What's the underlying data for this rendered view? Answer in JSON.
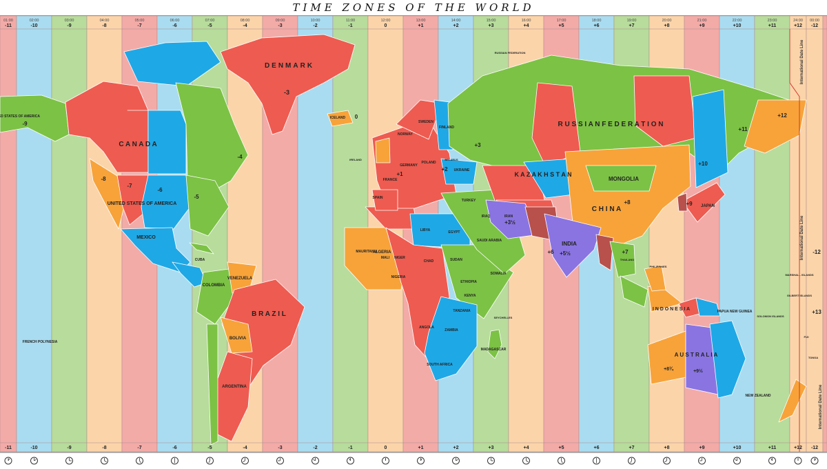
{
  "title": "TIME ZONES OF THE WORLD",
  "colors": {
    "stripe_pink": "#f3aba8",
    "stripe_blue": "#a9dcf0",
    "stripe_green": "#b7dc9c",
    "stripe_peach": "#fbd4aa",
    "land_red": "#ee5b50",
    "land_green": "#7cc245",
    "land_blue": "#1fa8e6",
    "land_orange": "#f7a33a",
    "land_purple": "#8a74e2",
    "land_darkred": "#b8504c",
    "land_pink": "#f0a7a6",
    "ocean": "#a9dcf0"
  },
  "zones": [
    {
      "time": "01:00",
      "offset": "-11",
      "color": "stripe_pink"
    },
    {
      "time": "02:00",
      "offset": "-10",
      "color": "stripe_blue"
    },
    {
      "time": "03:00",
      "offset": "-9",
      "color": "stripe_green"
    },
    {
      "time": "04:00",
      "offset": "-8",
      "color": "stripe_peach"
    },
    {
      "time": "05:00",
      "offset": "-7",
      "color": "stripe_pink"
    },
    {
      "time": "06:00",
      "offset": "-6",
      "color": "stripe_blue"
    },
    {
      "time": "07:00",
      "offset": "-5",
      "color": "stripe_green"
    },
    {
      "time": "08:00",
      "offset": "-4",
      "color": "stripe_peach"
    },
    {
      "time": "09:00",
      "offset": "-3",
      "color": "stripe_pink"
    },
    {
      "time": "10:00",
      "offset": "-2",
      "color": "stripe_blue"
    },
    {
      "time": "11:00",
      "offset": "-1",
      "color": "stripe_green"
    },
    {
      "time": "12:00",
      "offset": "0",
      "color": "stripe_peach"
    },
    {
      "time": "13:00",
      "offset": "+1",
      "color": "stripe_pink"
    },
    {
      "time": "14:00",
      "offset": "+2",
      "color": "stripe_blue"
    },
    {
      "time": "15:00",
      "offset": "+3",
      "color": "stripe_green"
    },
    {
      "time": "16:00",
      "offset": "+4",
      "color": "stripe_peach"
    },
    {
      "time": "17:00",
      "offset": "+5",
      "color": "stripe_pink"
    },
    {
      "time": "18:00",
      "offset": "+6",
      "color": "stripe_blue"
    },
    {
      "time": "19:00",
      "offset": "+7",
      "color": "stripe_green"
    },
    {
      "time": "20:00",
      "offset": "+8",
      "color": "stripe_peach"
    },
    {
      "time": "21:00",
      "offset": "+9",
      "color": "stripe_pink"
    },
    {
      "time": "22:00",
      "offset": "+10",
      "color": "stripe_blue"
    },
    {
      "time": "23:00",
      "offset": "+11",
      "color": "stripe_green"
    },
    {
      "time": "24:00",
      "offset": "+12",
      "color": "stripe_peach"
    },
    {
      "time": "00:00",
      "offset": "-12",
      "color": "stripe_peach"
    },
    {
      "time": "",
      "offset": "",
      "color": "stripe_pink"
    }
  ],
  "date_line_label": "International Date Line",
  "regions": [
    {
      "name": "greenland",
      "color": "land_red"
    },
    {
      "name": "iceland",
      "color": "land_orange"
    },
    {
      "name": "alaska",
      "color": "land_green"
    },
    {
      "name": "canada-arctic",
      "color": "land_blue"
    },
    {
      "name": "canada-west",
      "color": "land_red"
    },
    {
      "name": "canada-central",
      "color": "land_blue"
    },
    {
      "name": "canada-east",
      "color": "land_green"
    },
    {
      "name": "usa-pacific",
      "color": "land_orange"
    },
    {
      "name": "usa-mountain",
      "color": "land_red"
    },
    {
      "name": "usa-central",
      "color": "land_blue"
    },
    {
      "name": "usa-eastern",
      "color": "land_green"
    },
    {
      "name": "mexico",
      "color": "land_blue"
    },
    {
      "name": "central-america",
      "color": "land_blue"
    },
    {
      "name": "cuba",
      "color": "land_green"
    },
    {
      "name": "colombia",
      "color": "land_green"
    },
    {
      "name": "venezuela",
      "color": "land_orange"
    },
    {
      "name": "brazil",
      "color": "land_red"
    },
    {
      "name": "bolivia",
      "color": "land_orange"
    },
    {
      "name": "argentina",
      "color": "land_red"
    },
    {
      "name": "chile",
      "color": "land_green"
    },
    {
      "name": "west-africa",
      "color": "land_orange"
    },
    {
      "name": "algeria",
      "color": "land_red"
    },
    {
      "name": "libya-egypt",
      "color": "land_blue"
    },
    {
      "name": "central-africa",
      "color": "land_red"
    },
    {
      "name": "east-africa",
      "color": "land_green"
    },
    {
      "name": "southern-africa",
      "color": "land_blue"
    },
    {
      "name": "madagascar",
      "color": "land_green"
    },
    {
      "name": "europe",
      "color": "land_red"
    },
    {
      "name": "scandinavia",
      "color": "land_red"
    },
    {
      "name": "finland",
      "color": "land_blue"
    },
    {
      "name": "ukraine",
      "color": "land_blue"
    },
    {
      "name": "uk",
      "color": "land_orange"
    },
    {
      "name": "spain",
      "color": "land_red"
    },
    {
      "name": "middle-east",
      "color": "land_green"
    },
    {
      "name": "russia",
      "color": "land_green"
    },
    {
      "name": "russia-ural",
      "color": "land_red"
    },
    {
      "name": "russia-yakutsk",
      "color": "land_red"
    },
    {
      "name": "russia-vladivostok",
      "color": "land_blue"
    },
    {
      "name": "russia-kamchatka",
      "color": "land_orange"
    },
    {
      "name": "kazakhstan-west",
      "color": "land_red"
    },
    {
      "name": "kazakhstan-east",
      "color": "land_blue"
    },
    {
      "name": "central-asia",
      "color": "land_red"
    },
    {
      "name": "iran",
      "color": "land_purple"
    },
    {
      "name": "afghanistan-pakistan",
      "color": "land_darkred"
    },
    {
      "name": "china",
      "color": "land_orange"
    },
    {
      "name": "mongolia",
      "color": "land_green"
    },
    {
      "name": "india",
      "color": "land_purple"
    },
    {
      "name": "burma",
      "color": "land_darkred"
    },
    {
      "name": "southeast-asia",
      "color": "land_green"
    },
    {
      "name": "indonesia-west",
      "color": "land_green"
    },
    {
      "name": "indonesia-central",
      "color": "land_orange"
    },
    {
      "name": "papua",
      "color": "land_red"
    },
    {
      "name": "papua-new-guinea",
      "color": "land_blue"
    },
    {
      "name": "philippines",
      "color": "land_orange"
    },
    {
      "name": "japan",
      "color": "land_red"
    },
    {
      "name": "korea",
      "color": "land_darkred"
    },
    {
      "name": "australia-west",
      "color": "land_orange"
    },
    {
      "name": "australia-central",
      "color": "land_purple"
    },
    {
      "name": "australia-east",
      "color": "land_blue"
    },
    {
      "name": "new-zealand",
      "color": "land_orange"
    }
  ],
  "labels": [
    {
      "text": "DENMARK",
      "size": 10,
      "spaced": true
    },
    {
      "text": "-3",
      "size": 9
    },
    {
      "text": "ICELAND",
      "size": 5
    },
    {
      "text": "0",
      "size": 8
    },
    {
      "text": "UNITED STATES OF AMERICA",
      "size": 5
    },
    {
      "text": "-9",
      "size": 8
    },
    {
      "text": "C A N A D A",
      "size": 10
    },
    {
      "text": "-8",
      "size": 8
    },
    {
      "text": "-7",
      "size": 8
    },
    {
      "text": "-6",
      "size": 8
    },
    {
      "text": "-5",
      "size": 8
    },
    {
      "text": "-4",
      "size": 8
    },
    {
      "text": "UNITED STATES OF AMERICA",
      "size": 7
    },
    {
      "text": "MEXICO",
      "size": 7
    },
    {
      "text": "CUBA",
      "size": 5
    },
    {
      "text": "VENEZUELA",
      "size": 6
    },
    {
      "text": "COLOMBIA",
      "size": 6
    },
    {
      "text": "B R A Z I L",
      "size": 10
    },
    {
      "text": "BOLIVIA",
      "size": 6
    },
    {
      "text": "ARGENTINA",
      "size": 6
    },
    {
      "text": "FRENCH POLYNESIA",
      "size": 5
    },
    {
      "text": "NORWAY",
      "size": 5
    },
    {
      "text": "SWEDEN",
      "size": 5
    },
    {
      "text": "FINLAND",
      "size": 5
    },
    {
      "text": "POLAND",
      "size": 5
    },
    {
      "text": "GERMANY",
      "size": 5
    },
    {
      "text": "FRANCE",
      "size": 5
    },
    {
      "text": "SPAIN",
      "size": 5
    },
    {
      "text": "IRELAND",
      "size": 4
    },
    {
      "text": "UKRAINE",
      "size": 5
    },
    {
      "text": "BELARUS",
      "size": 4
    },
    {
      "text": "TURKEY",
      "size": 5
    },
    {
      "text": "+1",
      "size": 8
    },
    {
      "text": "+2",
      "size": 8
    },
    {
      "text": "+3",
      "size": 8
    },
    {
      "text": "ALGERIA",
      "size": 6
    },
    {
      "text": "LIBYA",
      "size": 5
    },
    {
      "text": "EGYPT",
      "size": 5
    },
    {
      "text": "MAURITANIA",
      "size": 5
    },
    {
      "text": "MALI",
      "size": 5
    },
    {
      "text": "NIGER",
      "size": 5
    },
    {
      "text": "CHAD",
      "size": 5
    },
    {
      "text": "NIGERIA",
      "size": 5
    },
    {
      "text": "SUDAN",
      "size": 5
    },
    {
      "text": "ETHIOPIA",
      "size": 5
    },
    {
      "text": "SOMALIA",
      "size": 5
    },
    {
      "text": "KENYA",
      "size": 5
    },
    {
      "text": "TANZANIA",
      "size": 5
    },
    {
      "text": "ANGOLA",
      "size": 5
    },
    {
      "text": "ZAMBIA",
      "size": 5
    },
    {
      "text": "SOUTH AFRICA",
      "size": 5
    },
    {
      "text": "MADAGASCAR",
      "size": 5
    },
    {
      "text": "SAUDI ARABIA",
      "size": 5
    },
    {
      "text": "IRAQ",
      "size": 5
    },
    {
      "text": "IRAN",
      "size": 5
    },
    {
      "text": "+3½",
      "size": 8
    },
    {
      "text": "R U S S I A N   F E D E R A T I O N",
      "size": 10
    },
    {
      "text": "RUSSIAN FEDERATION",
      "size": 4
    },
    {
      "text": "K A Z A K H S T A N",
      "size": 9
    },
    {
      "text": "MONGOLIA",
      "size": 8
    },
    {
      "text": "C H I N A",
      "size": 10
    },
    {
      "text": "+8",
      "size": 8
    },
    {
      "text": "INDIA",
      "size": 8
    },
    {
      "text": "+5½",
      "size": 8
    },
    {
      "text": "+6",
      "size": 8
    },
    {
      "text": "+7",
      "size": 8
    },
    {
      "text": "+9",
      "size": 8
    },
    {
      "text": "+10",
      "size": 8
    },
    {
      "text": "+11",
      "size": 8
    },
    {
      "text": "+12",
      "size": 8
    },
    {
      "text": "JAPAN",
      "size": 6
    },
    {
      "text": "THAILAND",
      "size": 4
    },
    {
      "text": "PHILIPPINES",
      "size": 4
    },
    {
      "text": "I N D O N E S I A",
      "size": 7
    },
    {
      "text": "PAPUA NEW GUINEA",
      "size": 5
    },
    {
      "text": "SOLOMON ISLANDS",
      "size": 4
    },
    {
      "text": "MARSHALL ISLANDS",
      "size": 4
    },
    {
      "text": "GILBERT ISLANDS",
      "size": 4
    },
    {
      "text": "A U S T R A L I A",
      "size": 8
    },
    {
      "text": "+8¾",
      "size": 7
    },
    {
      "text": "+9½",
      "size": 7
    },
    {
      "text": "NEW ZEALAND",
      "size": 5
    },
    {
      "text": "FIJI",
      "size": 4
    },
    {
      "text": "TONGA",
      "size": 4
    },
    {
      "text": "+13",
      "size": 8
    },
    {
      "text": "-12",
      "size": 8
    },
    {
      "text": "SEYCHELLES",
      "size": 4
    }
  ]
}
